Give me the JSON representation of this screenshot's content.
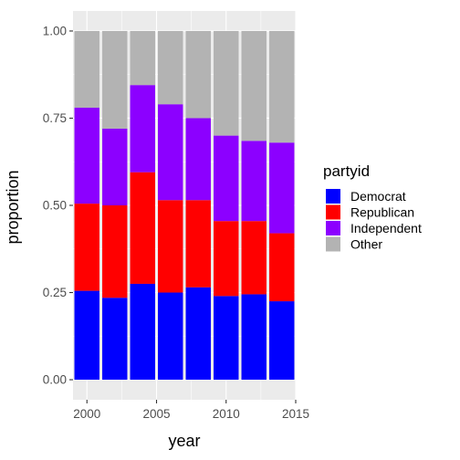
{
  "chart_data": {
    "type": "bar",
    "stacked": true,
    "xlabel": "year",
    "ylabel": "proportion",
    "x": [
      2000,
      2002,
      2004,
      2006,
      2008,
      2010,
      2012,
      2014
    ],
    "x_ticks": [
      2000,
      2005,
      2010,
      2015
    ],
    "y_ticks": [
      "0.00",
      "0.25",
      "0.50",
      "0.75",
      "1.00"
    ],
    "ylim": [
      0,
      1
    ],
    "grid": true,
    "legend": {
      "title": "partyid",
      "position": "right"
    },
    "series": [
      {
        "name": "Democrat",
        "color": "#0000ff",
        "values": [
          0.255,
          0.235,
          0.275,
          0.25,
          0.265,
          0.24,
          0.245,
          0.225
        ]
      },
      {
        "name": "Republican",
        "color": "#ff0000",
        "values": [
          0.25,
          0.265,
          0.32,
          0.265,
          0.25,
          0.215,
          0.21,
          0.195
        ]
      },
      {
        "name": "Independent",
        "color": "#8c00ff",
        "values": [
          0.275,
          0.22,
          0.25,
          0.275,
          0.235,
          0.245,
          0.23,
          0.26
        ]
      },
      {
        "name": "Other",
        "color": "#b3b3b3",
        "values": [
          0.22,
          0.28,
          0.155,
          0.21,
          0.25,
          0.3,
          0.315,
          0.32
        ]
      }
    ]
  }
}
